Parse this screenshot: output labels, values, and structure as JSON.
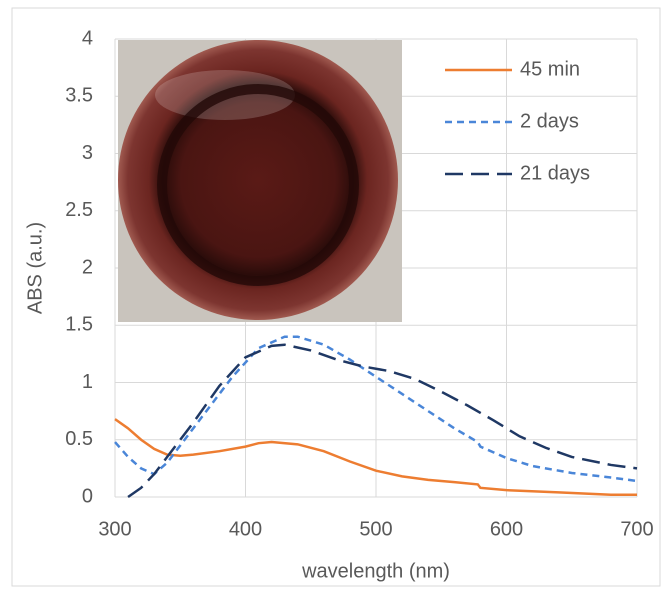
{
  "chart_data": {
    "type": "line",
    "x_label": "wavelength (nm)",
    "y_label": "ABS (a.u.)",
    "xlim": [
      300,
      700
    ],
    "xticks": [
      300,
      400,
      500,
      600,
      700
    ],
    "ylim": [
      0,
      4
    ],
    "yticks": [
      0,
      0.5,
      1,
      1.5,
      2,
      2.5,
      3,
      3.5,
      4
    ],
    "grid": true,
    "legend": "upper right",
    "series": [
      {
        "name": "45 min",
        "color": "#ed7d31",
        "dash": "solid",
        "x": [
          300,
          310,
          320,
          330,
          340,
          350,
          360,
          380,
          400,
          410,
          420,
          440,
          460,
          480,
          500,
          520,
          540,
          560,
          578,
          580,
          600,
          640,
          680,
          700
        ],
        "values": [
          0.68,
          0.6,
          0.5,
          0.42,
          0.37,
          0.36,
          0.37,
          0.4,
          0.44,
          0.47,
          0.48,
          0.46,
          0.4,
          0.31,
          0.23,
          0.18,
          0.15,
          0.13,
          0.11,
          0.08,
          0.06,
          0.04,
          0.02,
          0.02
        ]
      },
      {
        "name": "2 days",
        "color": "#4a86d8",
        "dash": "short",
        "x": [
          300,
          310,
          320,
          330,
          340,
          350,
          370,
          390,
          410,
          430,
          440,
          460,
          480,
          500,
          520,
          540,
          560,
          578,
          580,
          600,
          620,
          650,
          680,
          700
        ],
        "values": [
          0.48,
          0.35,
          0.25,
          0.2,
          0.3,
          0.45,
          0.75,
          1.05,
          1.3,
          1.4,
          1.4,
          1.33,
          1.2,
          1.05,
          0.9,
          0.75,
          0.6,
          0.48,
          0.44,
          0.34,
          0.27,
          0.21,
          0.17,
          0.14
        ]
      },
      {
        "name": "21 days",
        "color": "#1f3864",
        "dash": "long",
        "x": [
          310,
          320,
          330,
          340,
          360,
          380,
          400,
          420,
          430,
          450,
          470,
          490,
          510,
          530,
          550,
          570,
          590,
          610,
          630,
          650,
          680,
          700
        ],
        "values": [
          0,
          0.08,
          0.2,
          0.35,
          0.65,
          0.97,
          1.22,
          1.32,
          1.33,
          1.28,
          1.2,
          1.14,
          1.1,
          1.03,
          0.92,
          0.8,
          0.67,
          0.53,
          0.43,
          0.35,
          0.28,
          0.25
        ]
      }
    ]
  }
}
